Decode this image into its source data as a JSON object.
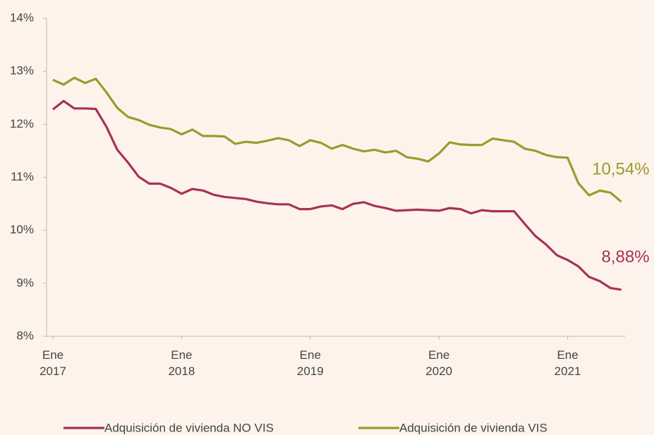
{
  "chart_data": {
    "type": "line",
    "categories": [
      "Ene\n2017",
      null,
      null,
      null,
      null,
      null,
      null,
      null,
      null,
      null,
      null,
      null,
      "Ene\n2018",
      null,
      null,
      null,
      null,
      null,
      null,
      null,
      null,
      null,
      null,
      null,
      "Ene\n2019",
      null,
      null,
      null,
      null,
      null,
      null,
      null,
      null,
      null,
      null,
      null,
      "Ene\n2020",
      null,
      null,
      null,
      null,
      null,
      null,
      null,
      null,
      null,
      null,
      null,
      "Ene\n2021",
      null,
      null,
      null,
      null,
      null
    ],
    "series": [
      {
        "name": "Adquisición de vivienda NO VIS",
        "color": "#a63259",
        "label": "8,88%",
        "values": [
          12.28,
          12.44,
          12.3,
          12.3,
          12.29,
          11.95,
          11.52,
          11.28,
          11.01,
          10.88,
          10.88,
          10.8,
          10.69,
          10.78,
          10.75,
          10.67,
          10.63,
          10.61,
          10.59,
          10.54,
          10.51,
          10.49,
          10.49,
          10.4,
          10.4,
          10.45,
          10.47,
          10.4,
          10.5,
          10.53,
          10.46,
          10.42,
          10.37,
          10.38,
          10.39,
          10.38,
          10.37,
          10.42,
          10.4,
          10.32,
          10.38,
          10.36,
          10.36,
          10.36,
          10.12,
          9.89,
          9.73,
          9.53,
          9.44,
          9.32,
          9.12,
          9.04,
          8.91,
          8.88
        ]
      },
      {
        "name": "Adquisición de vivienda VIS",
        "color": "#9c9a2f",
        "label": "10,54%",
        "values": [
          12.84,
          12.75,
          12.88,
          12.78,
          12.86,
          12.6,
          12.31,
          12.14,
          12.08,
          11.99,
          11.94,
          11.91,
          11.81,
          11.9,
          11.78,
          11.78,
          11.77,
          11.63,
          11.67,
          11.65,
          11.69,
          11.74,
          11.7,
          11.59,
          11.7,
          11.65,
          11.54,
          11.61,
          11.54,
          11.49,
          11.52,
          11.47,
          11.5,
          11.38,
          11.35,
          11.3,
          11.45,
          11.66,
          11.62,
          11.61,
          11.61,
          11.73,
          11.7,
          11.67,
          11.54,
          11.5,
          11.42,
          11.38,
          11.37,
          10.89,
          10.66,
          10.75,
          10.71,
          10.54
        ]
      }
    ],
    "ylim": [
      8,
      14
    ],
    "yticks": [
      {
        "value": 8,
        "label": "8%"
      },
      {
        "value": 9,
        "label": "9%"
      },
      {
        "value": 10,
        "label": "10%"
      },
      {
        "value": 11,
        "label": "11%"
      },
      {
        "value": 12,
        "label": "12%"
      },
      {
        "value": 13,
        "label": "13%"
      },
      {
        "value": 14,
        "label": "14%"
      }
    ],
    "grid": false
  }
}
